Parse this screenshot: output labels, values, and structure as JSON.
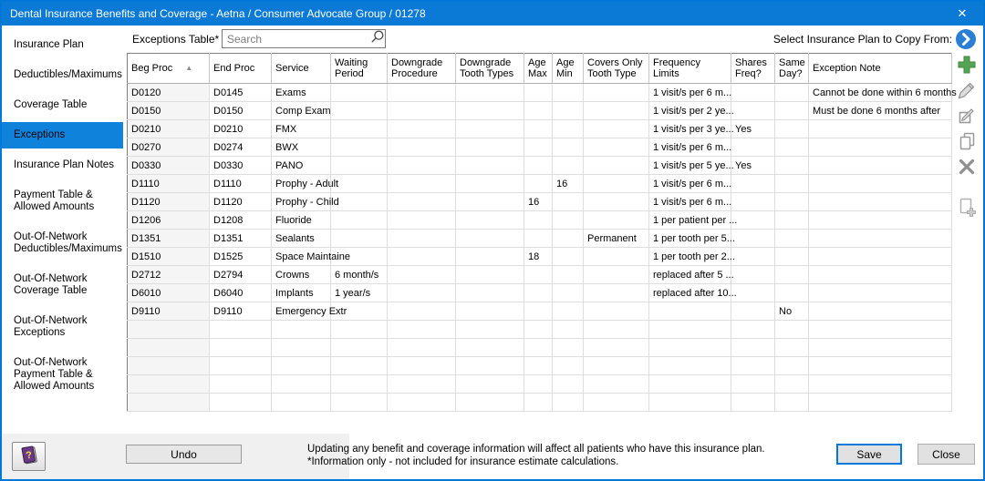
{
  "colors": {
    "accent": "#0078d7",
    "titlebar": "#0b7ad7",
    "selected": "#0f83dc",
    "add_green": "#55a455",
    "arrow_blue": "#2a7ed3"
  },
  "window": {
    "title": "Dental Insurance Benefits and Coverage - Aetna / Consumer Advocate Group / 01278",
    "close_glyph": "✕"
  },
  "sidebar": {
    "items": [
      {
        "label": "Insurance Plan",
        "selected": false
      },
      {
        "label": "Deductibles/Maximums",
        "selected": false
      },
      {
        "label": "Coverage Table",
        "selected": false
      },
      {
        "label": "Exceptions",
        "selected": true
      },
      {
        "label": "Insurance Plan Notes",
        "selected": false
      },
      {
        "label": "Payment Table & Allowed Amounts",
        "selected": false
      },
      {
        "label": "Out-Of-Network Deductibles/Maximums",
        "selected": false
      },
      {
        "label": "Out-Of-Network Coverage Table",
        "selected": false
      },
      {
        "label": "Out-Of-Network Exceptions",
        "selected": false
      },
      {
        "label": "Out-Of-Network Payment Table & Allowed Amounts",
        "selected": false
      }
    ]
  },
  "topbar": {
    "table_label": "Exceptions Table*",
    "search_placeholder": "Search",
    "copy_from_label": "Select Insurance Plan to Copy From:"
  },
  "table": {
    "sort_asc_glyph": "▲",
    "columns": [
      {
        "label": "Beg Proc",
        "width": 90,
        "sorted": "asc"
      },
      {
        "label": "End Proc",
        "width": 68
      },
      {
        "label": "Service",
        "width": 65
      },
      {
        "label": "Waiting Period",
        "width": 62
      },
      {
        "label": "Downgrade Procedure",
        "width": 75
      },
      {
        "label": "Downgrade Tooth Types",
        "width": 75
      },
      {
        "label": "Age Max",
        "width": 31
      },
      {
        "label": "Age Min",
        "width": 34
      },
      {
        "label": "Covers Only Tooth Type",
        "width": 72
      },
      {
        "label": "Frequency Limits",
        "width": 90
      },
      {
        "label": "Shares Freq?",
        "width": 48
      },
      {
        "label": "Same Day?",
        "width": 37
      },
      {
        "label": "Exception Note",
        "width": 157
      }
    ],
    "rows": [
      [
        "D0120",
        "D0145",
        "Exams",
        "",
        "",
        "",
        "",
        "",
        "",
        "1 visit/s per 6 m...",
        "",
        "",
        "Cannot be done within 6 months"
      ],
      [
        "D0150",
        "D0150",
        "Comp Exam",
        "",
        "",
        "",
        "",
        "",
        "",
        "1 visit/s per 2 ye...",
        "",
        "",
        "Must be done 6 months after"
      ],
      [
        "D0210",
        "D0210",
        "FMX",
        "",
        "",
        "",
        "",
        "",
        "",
        "1 visit/s per 3 ye...",
        "Yes",
        "",
        ""
      ],
      [
        "D0270",
        "D0274",
        "BWX",
        "",
        "",
        "",
        "",
        "",
        "",
        "1 visit/s per 6 m...",
        "",
        "",
        ""
      ],
      [
        "D0330",
        "D0330",
        "PANO",
        "",
        "",
        "",
        "",
        "",
        "",
        "1 visit/s per 5 ye...",
        "Yes",
        "",
        ""
      ],
      [
        "D1110",
        "D1110",
        "Prophy - Adult",
        "",
        "",
        "",
        "",
        "16",
        "",
        "1 visit/s per 6 m...",
        "",
        "",
        ""
      ],
      [
        "D1120",
        "D1120",
        "Prophy - Child",
        "",
        "",
        "",
        "16",
        "",
        "",
        "1 visit/s per 6 m...",
        "",
        "",
        ""
      ],
      [
        "D1206",
        "D1208",
        "Fluoride",
        "",
        "",
        "",
        "",
        "",
        "",
        "1 per patient per ...",
        "",
        "",
        ""
      ],
      [
        "D1351",
        "D1351",
        "Sealants",
        "",
        "",
        "",
        "",
        "",
        "Permanent",
        "1 per tooth per 5...",
        "",
        "",
        ""
      ],
      [
        "D1510",
        "D1525",
        "Space Maintaine",
        "",
        "",
        "",
        "18",
        "",
        "",
        "1 per tooth per 2...",
        "",
        "",
        ""
      ],
      [
        "D2712",
        "D2794",
        "Crowns",
        "6 month/s",
        "",
        "",
        "",
        "",
        "",
        "replaced after 5 ...",
        "",
        "",
        ""
      ],
      [
        "D6010",
        "D6040",
        "Implants",
        "1 year/s",
        "",
        "",
        "",
        "",
        "",
        "replaced after 10...",
        "",
        "",
        ""
      ],
      [
        "D9110",
        "D9110",
        "Emergency Extr",
        "",
        "",
        "",
        "",
        "",
        "",
        "",
        "",
        "No",
        ""
      ]
    ]
  },
  "icons": {
    "titlebar": "close-icon",
    "search": "search-icon",
    "sort": "sort-asc-icon",
    "copy_from": "chevron-right-circle-icon",
    "toolbar": [
      "add-icon",
      "edit-icon",
      "edit-multiple-icon",
      "copy-icon",
      "delete-icon",
      "new-note-icon"
    ],
    "help": "help-book-icon"
  },
  "footer": {
    "undo_label": "Undo",
    "note_line1": "Updating any benefit and coverage information will affect all patients who have this insurance plan.",
    "note_line2": "*Information only - not included for insurance estimate calculations.",
    "save_label": "Save",
    "close_label": "Close"
  }
}
